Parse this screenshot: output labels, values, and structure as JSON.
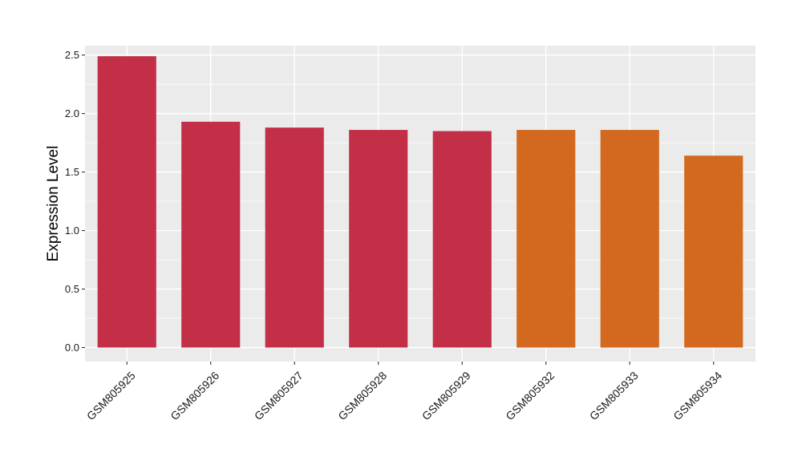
{
  "chart_data": {
    "type": "bar",
    "title": "",
    "xlabel": "",
    "ylabel": "Expression Level",
    "ylim": [
      -0.12,
      2.58
    ],
    "y_ticks": [
      "0.0",
      "0.5",
      "1.0",
      "1.5",
      "2.0",
      "2.5"
    ],
    "grid": true,
    "categories": [
      "GSM805925",
      "GSM805926",
      "GSM805927",
      "GSM805928",
      "GSM805929",
      "GSM805932",
      "GSM805933",
      "GSM805934"
    ],
    "values": [
      2.49,
      1.93,
      1.88,
      1.86,
      1.85,
      1.86,
      1.86,
      1.64
    ],
    "bar_colors": [
      "#c32f47",
      "#c32f47",
      "#c32f47",
      "#c32f47",
      "#c32f47",
      "#d2691e",
      "#d2691e",
      "#d2691e"
    ],
    "panel_background": "#ebebeb",
    "grid_color": "#ffffff"
  }
}
